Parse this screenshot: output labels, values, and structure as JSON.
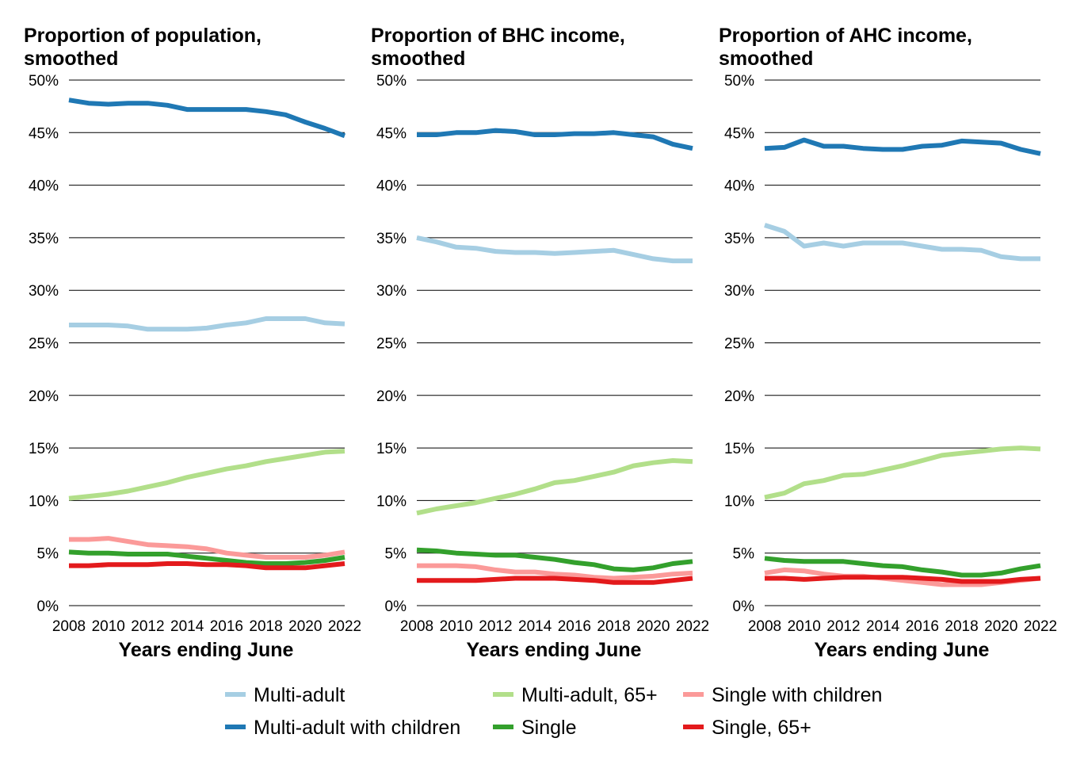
{
  "chart_data": [
    {
      "type": "line",
      "title": "Proportion of population, smoothed",
      "title_lines": [
        "Proportion of population,",
        "smoothed"
      ],
      "xlabel": "Years ending June",
      "ylabel": "",
      "xlim": [
        2008,
        2022
      ],
      "ylim": [
        0,
        50
      ],
      "x_ticks": [
        2008,
        2010,
        2012,
        2014,
        2016,
        2018,
        2020,
        2022
      ],
      "y_ticks": [
        0,
        5,
        10,
        15,
        20,
        25,
        30,
        35,
        40,
        45,
        50
      ],
      "y_tick_labels": [
        "0%",
        "5%",
        "10%",
        "15%",
        "20%",
        "25%",
        "30%",
        "35%",
        "40%",
        "45%",
        "50%"
      ],
      "grid": "horizontal",
      "x": [
        2008,
        2009,
        2010,
        2011,
        2012,
        2013,
        2014,
        2015,
        2016,
        2017,
        2018,
        2019,
        2020,
        2021,
        2022
      ],
      "series": [
        {
          "name": "Multi-adult",
          "values": [
            26.7,
            26.7,
            26.7,
            26.6,
            26.3,
            26.3,
            26.3,
            26.4,
            26.7,
            26.9,
            27.3,
            27.3,
            27.3,
            26.9,
            26.8
          ]
        },
        {
          "name": "Multi-adult with children",
          "values": [
            48.1,
            47.8,
            47.7,
            47.8,
            47.8,
            47.6,
            47.2,
            47.2,
            47.2,
            47.2,
            47.0,
            46.7,
            46.0,
            45.4,
            44.7
          ]
        },
        {
          "name": "Multi-adult, 65+",
          "values": [
            10.2,
            10.4,
            10.6,
            10.9,
            11.3,
            11.7,
            12.2,
            12.6,
            13.0,
            13.3,
            13.7,
            14.0,
            14.3,
            14.6,
            14.7
          ]
        },
        {
          "name": "Single",
          "values": [
            5.1,
            5.0,
            5.0,
            4.9,
            4.9,
            4.9,
            4.7,
            4.5,
            4.3,
            4.1,
            4.0,
            4.0,
            4.1,
            4.3,
            4.6
          ]
        },
        {
          "name": "Single with children",
          "values": [
            6.3,
            6.3,
            6.4,
            6.1,
            5.8,
            5.7,
            5.6,
            5.4,
            5.0,
            4.8,
            4.6,
            4.6,
            4.6,
            4.8,
            5.1
          ]
        },
        {
          "name": "Single, 65+",
          "values": [
            3.8,
            3.8,
            3.9,
            3.9,
            3.9,
            4.0,
            4.0,
            3.9,
            3.9,
            3.8,
            3.6,
            3.6,
            3.6,
            3.8,
            4.0
          ]
        }
      ]
    },
    {
      "type": "line",
      "title": "Proportion of BHC income, smoothed",
      "title_lines": [
        "Proportion of BHC income,",
        "smoothed"
      ],
      "xlabel": "Years ending June",
      "ylabel": "",
      "xlim": [
        2008,
        2022
      ],
      "ylim": [
        0,
        50
      ],
      "x_ticks": [
        2008,
        2010,
        2012,
        2014,
        2016,
        2018,
        2020,
        2022
      ],
      "y_ticks": [
        0,
        5,
        10,
        15,
        20,
        25,
        30,
        35,
        40,
        45,
        50
      ],
      "y_tick_labels": [
        "0%",
        "5%",
        "10%",
        "15%",
        "20%",
        "25%",
        "30%",
        "35%",
        "40%",
        "45%",
        "50%"
      ],
      "grid": "horizontal",
      "x": [
        2008,
        2009,
        2010,
        2011,
        2012,
        2013,
        2014,
        2015,
        2016,
        2017,
        2018,
        2019,
        2020,
        2021,
        2022
      ],
      "series": [
        {
          "name": "Multi-adult",
          "values": [
            35.0,
            34.6,
            34.1,
            34.0,
            33.7,
            33.6,
            33.6,
            33.5,
            33.6,
            33.7,
            33.8,
            33.4,
            33.0,
            32.8,
            32.8
          ]
        },
        {
          "name": "Multi-adult with children",
          "values": [
            44.8,
            44.8,
            45.0,
            45.0,
            45.2,
            45.1,
            44.8,
            44.8,
            44.9,
            44.9,
            45.0,
            44.8,
            44.6,
            43.9,
            43.5
          ]
        },
        {
          "name": "Multi-adult, 65+",
          "values": [
            8.8,
            9.2,
            9.5,
            9.8,
            10.2,
            10.6,
            11.1,
            11.7,
            11.9,
            12.3,
            12.7,
            13.3,
            13.6,
            13.8,
            13.7
          ]
        },
        {
          "name": "Single",
          "values": [
            5.3,
            5.2,
            5.0,
            4.9,
            4.8,
            4.8,
            4.6,
            4.4,
            4.1,
            3.9,
            3.5,
            3.4,
            3.6,
            4.0,
            4.2
          ]
        },
        {
          "name": "Single with children",
          "values": [
            3.8,
            3.8,
            3.8,
            3.7,
            3.4,
            3.2,
            3.2,
            3.0,
            2.9,
            2.7,
            2.6,
            2.7,
            2.8,
            3.0,
            3.1
          ]
        },
        {
          "name": "Single, 65+",
          "values": [
            2.4,
            2.4,
            2.4,
            2.4,
            2.5,
            2.6,
            2.6,
            2.6,
            2.5,
            2.4,
            2.2,
            2.2,
            2.2,
            2.4,
            2.6
          ]
        }
      ]
    },
    {
      "type": "line",
      "title": "Proportion of AHC income, smoothed",
      "title_lines": [
        "Proportion of AHC income,",
        "smoothed"
      ],
      "xlabel": "Years ending June",
      "ylabel": "",
      "xlim": [
        2008,
        2022
      ],
      "ylim": [
        0,
        50
      ],
      "x_ticks": [
        2008,
        2010,
        2012,
        2014,
        2016,
        2018,
        2020,
        2022
      ],
      "y_ticks": [
        0,
        5,
        10,
        15,
        20,
        25,
        30,
        35,
        40,
        45,
        50
      ],
      "y_tick_labels": [
        "0%",
        "5%",
        "10%",
        "15%",
        "20%",
        "25%",
        "30%",
        "35%",
        "40%",
        "45%",
        "50%"
      ],
      "grid": "horizontal",
      "x": [
        2008,
        2009,
        2010,
        2011,
        2012,
        2013,
        2014,
        2015,
        2016,
        2017,
        2018,
        2019,
        2020,
        2021,
        2022
      ],
      "series": [
        {
          "name": "Multi-adult",
          "values": [
            36.2,
            35.6,
            34.2,
            34.5,
            34.2,
            34.5,
            34.5,
            34.5,
            34.2,
            33.9,
            33.9,
            33.8,
            33.2,
            33.0,
            33.0
          ]
        },
        {
          "name": "Multi-adult with children",
          "values": [
            43.5,
            43.6,
            44.3,
            43.7,
            43.7,
            43.5,
            43.4,
            43.4,
            43.7,
            43.8,
            44.2,
            44.1,
            44.0,
            43.4,
            43.0
          ]
        },
        {
          "name": "Multi-adult, 65+",
          "values": [
            10.3,
            10.7,
            11.6,
            11.9,
            12.4,
            12.5,
            12.9,
            13.3,
            13.8,
            14.3,
            14.5,
            14.7,
            14.9,
            15.0,
            14.9
          ]
        },
        {
          "name": "Single",
          "values": [
            4.5,
            4.3,
            4.2,
            4.2,
            4.2,
            4.0,
            3.8,
            3.7,
            3.4,
            3.2,
            2.9,
            2.9,
            3.1,
            3.5,
            3.8
          ]
        },
        {
          "name": "Single with children",
          "values": [
            3.1,
            3.4,
            3.3,
            3.0,
            2.8,
            2.8,
            2.6,
            2.4,
            2.2,
            2.0,
            2.0,
            2.0,
            2.2,
            2.4,
            2.6
          ]
        },
        {
          "name": "Single, 65+",
          "values": [
            2.6,
            2.6,
            2.5,
            2.6,
            2.7,
            2.7,
            2.7,
            2.7,
            2.6,
            2.5,
            2.3,
            2.3,
            2.3,
            2.5,
            2.6
          ]
        }
      ]
    }
  ],
  "legend": {
    "placement": "bottom",
    "items": [
      {
        "name": "Multi-adult",
        "color": "#a6cee3"
      },
      {
        "name": "Multi-adult, 65+",
        "color": "#b2df8a"
      },
      {
        "name": "Single with children",
        "color": "#fb9a99"
      },
      {
        "name": "Multi-adult with children",
        "color": "#1f78b4"
      },
      {
        "name": "Single",
        "color": "#33a02c"
      },
      {
        "name": "Single, 65+",
        "color": "#e31a1c"
      }
    ]
  },
  "series_colors": {
    "Multi-adult": "#a6cee3",
    "Multi-adult with children": "#1f78b4",
    "Multi-adult, 65+": "#b2df8a",
    "Single": "#33a02c",
    "Single with children": "#fb9a99",
    "Single, 65+": "#e31a1c"
  }
}
